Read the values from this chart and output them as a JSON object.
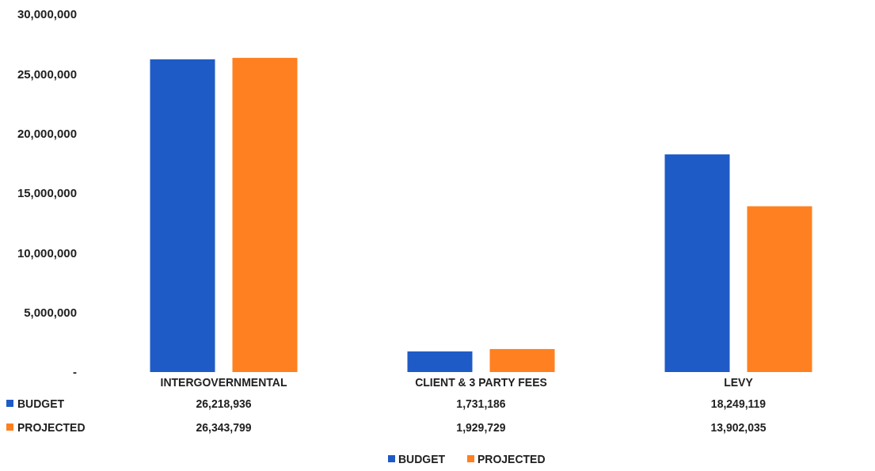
{
  "chart_data": {
    "type": "bar",
    "categories": [
      "INTERGOVERNMENTAL",
      "CLIENT & 3 PARTY FEES",
      "LEVY"
    ],
    "series": [
      {
        "name": "BUDGET",
        "color": "#1f5bc6",
        "values": [
          26218936,
          1731186,
          18249119
        ],
        "value_labels": [
          "26,218,936",
          "1,731,186",
          "18,249,119"
        ]
      },
      {
        "name": "PROJECTED",
        "color": "#ff8020",
        "values": [
          26343799,
          1929729,
          13902035
        ],
        "value_labels": [
          "26,343,799",
          "1,929,729",
          "13,902,035"
        ]
      }
    ],
    "ylim": [
      0,
      30000000
    ],
    "yticks": [
      {
        "value": 0,
        "label": "-"
      },
      {
        "value": 5000000,
        "label": "5,000,000"
      },
      {
        "value": 10000000,
        "label": "10,000,000"
      },
      {
        "value": 15000000,
        "label": "15,000,000"
      },
      {
        "value": 20000000,
        "label": "20,000,000"
      },
      {
        "value": 25000000,
        "label": "25,000,000"
      },
      {
        "value": 30000000,
        "label": "30,000,000"
      }
    ],
    "legend": "bottom",
    "grid": false
  }
}
